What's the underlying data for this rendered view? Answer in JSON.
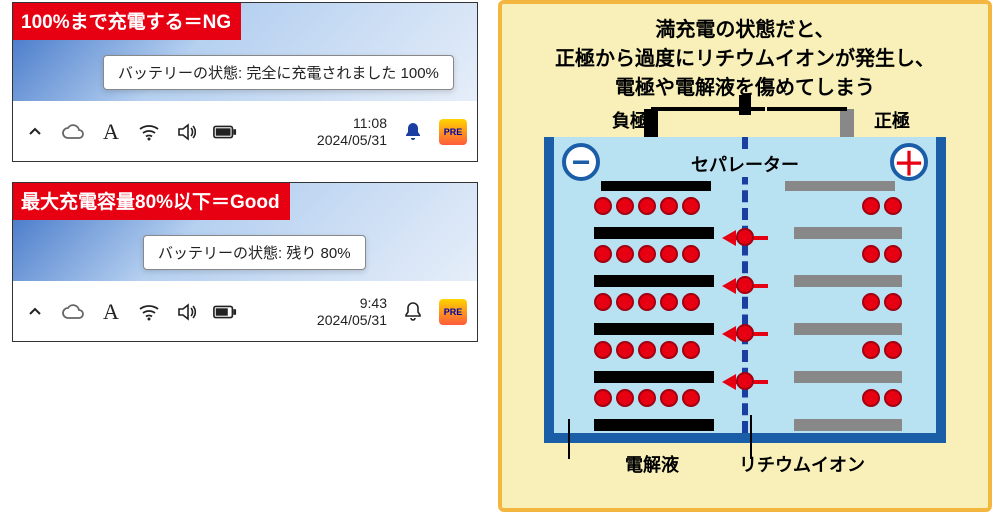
{
  "panels": [
    {
      "red_label": "100%まで充電する＝NG",
      "tooltip": "バッテリーの状態: 完全に充電されました 100%",
      "time": "11:08",
      "date": "2024/05/31",
      "bell_filled": true
    },
    {
      "red_label": "最大充電容量80%以下＝Good",
      "tooltip": "バッテリーの状態: 残り 80%",
      "time": "9:43",
      "date": "2024/05/31",
      "bell_filled": false
    }
  ],
  "pre_badge": "PRE",
  "diagram": {
    "title_line1": "満充電の状態だと、",
    "title_line2": "正極から過度にリチウムイオンが発生し、",
    "title_line3": "電極や電解液を傷めてしまう",
    "neg_label": "負極",
    "pos_label": "正極",
    "separator_label": "セパレーター",
    "electrolyte_label": "電解液",
    "ion_label": "リチウムイオン",
    "minus": "−",
    "plus": "＋",
    "colors": {
      "panel_bg": "#f8f0b8",
      "panel_border": "#f3b73f",
      "electrolyte": "#b8e2f2",
      "case": "#1a5ea8",
      "ion": "#e60012",
      "pos_electrode": "#888888",
      "neg_electrode": "#000000"
    },
    "neg_ion_counts": [
      5,
      5,
      5,
      5,
      5
    ],
    "pos_ion_counts": [
      2,
      2,
      2,
      2,
      2
    ],
    "arrow_rows": 4
  }
}
